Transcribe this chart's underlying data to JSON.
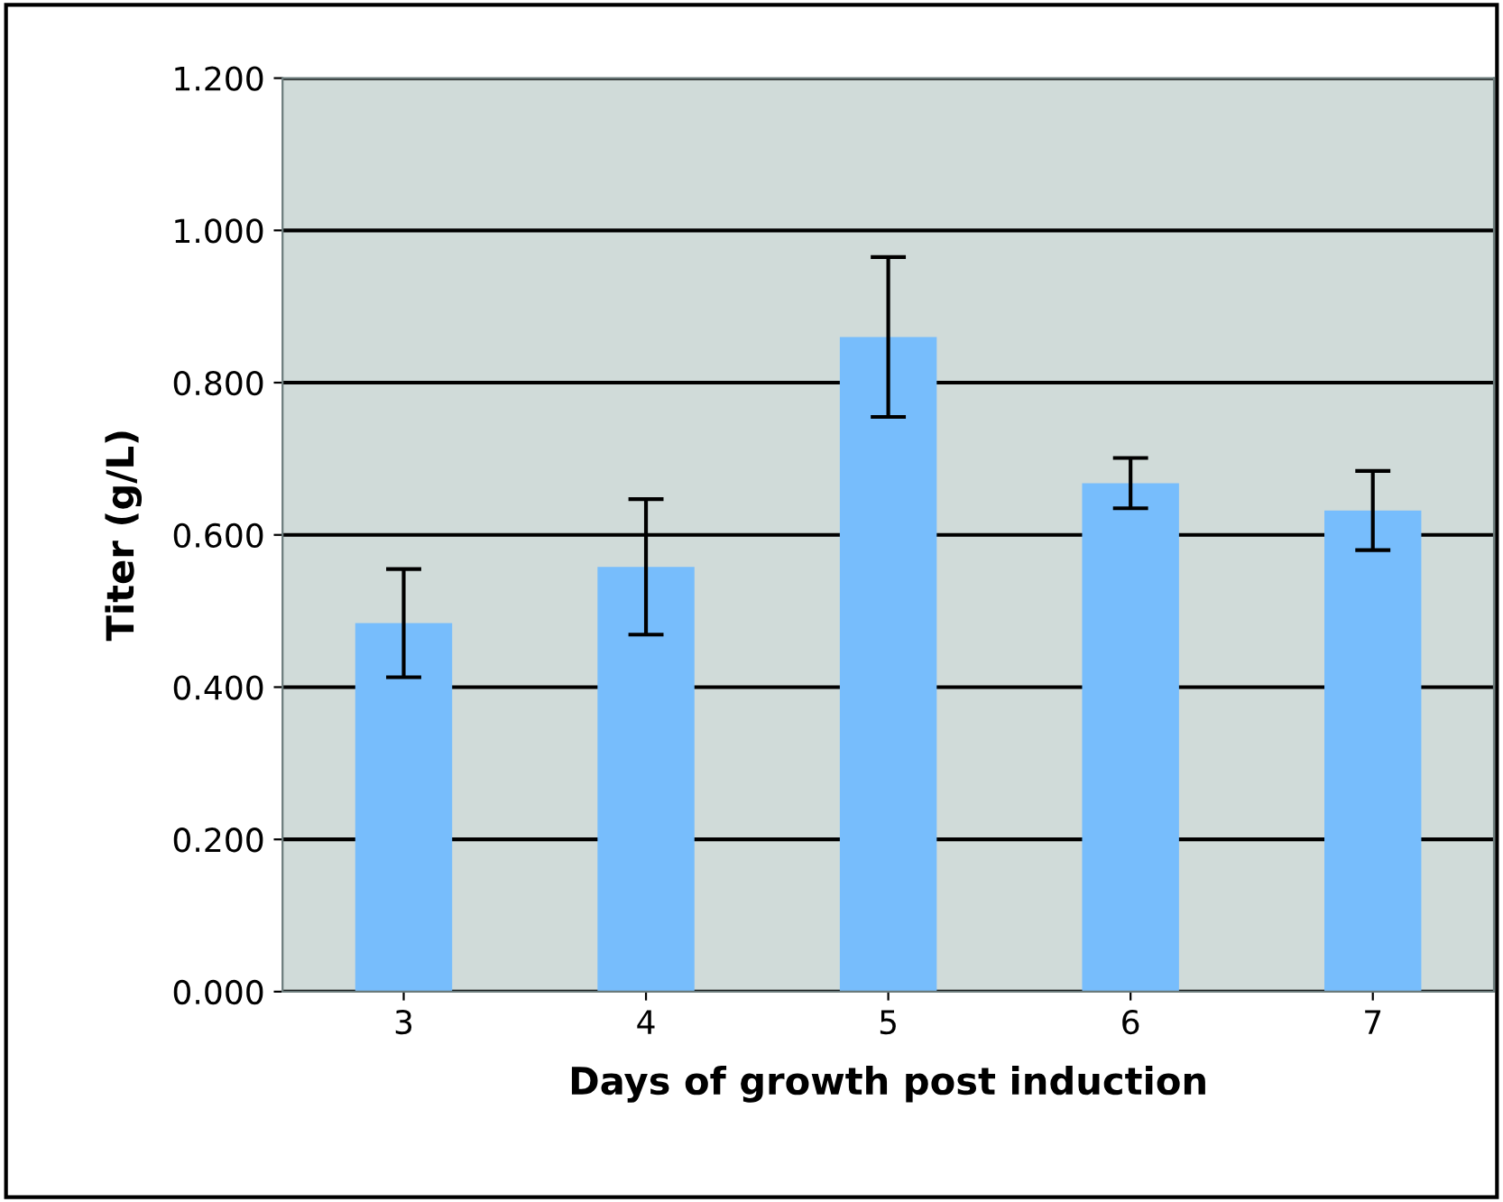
{
  "chart_data": {
    "type": "bar",
    "xlabel": "Days of growth post induction",
    "ylabel": "Titer (g/L)",
    "categories": [
      "3",
      "4",
      "5",
      "6",
      "7"
    ],
    "values": [
      0.484,
      0.558,
      0.86,
      0.668,
      0.632
    ],
    "errors": [
      0.071,
      0.089,
      0.105,
      0.033,
      0.052
    ],
    "color": "#77bdfc",
    "ylim": [
      0,
      1.2
    ],
    "yticks": [
      {
        "value": 0,
        "label": "0.000"
      },
      {
        "value": 0.2,
        "label": "0.200"
      },
      {
        "value": 0.4,
        "label": "0.400"
      },
      {
        "value": 0.6,
        "label": "0.600"
      },
      {
        "value": 0.8,
        "label": "0.800"
      },
      {
        "value": 1.0,
        "label": "1.000"
      },
      {
        "value": 1.2,
        "label": "1.200"
      }
    ],
    "grid": "y",
    "legend": false
  }
}
